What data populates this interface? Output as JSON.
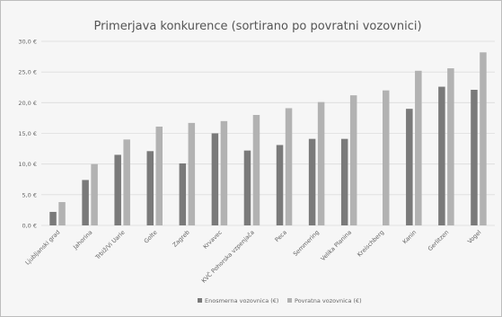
{
  "chart_data": {
    "type": "bar",
    "title": "Primerjava konkurence (sortirano po povratni vozovnici)",
    "xlabel": "",
    "ylabel": "",
    "ylim": [
      0,
      30
    ],
    "yticks": [
      "0,0 €",
      "5,0 €",
      "10,0 €",
      "15,0 €",
      "20,0 €",
      "25,0 €",
      "30,0 €"
    ],
    "grid": true,
    "legend_position": "bottom",
    "categories": [
      "Ljubljanski grad",
      "Jahorina",
      "Trbiž/Vi Uarie",
      "Golte",
      "Zagreb",
      "Krvavec",
      "KVČ Pohorska vzpenjača",
      "Peca",
      "Semmering",
      "Velika Planina",
      "Kreischberg",
      "Kanin",
      "Gerlitzen",
      "Vogel"
    ],
    "series": [
      {
        "name": "Enosmerna vozovnica (€)",
        "color": "#7a7a7a",
        "values": [
          2.2,
          7.4,
          11.5,
          12.1,
          10.1,
          15.0,
          12.2,
          13.1,
          14.1,
          14.1,
          null,
          19.0,
          22.6,
          22.1
        ]
      },
      {
        "name": "Povratna vozovnica (€)",
        "color": "#b2b2b2",
        "values": [
          3.8,
          10.0,
          14.0,
          16.1,
          16.7,
          17.0,
          18.0,
          19.1,
          20.1,
          21.2,
          22.0,
          25.2,
          25.6,
          28.2
        ]
      }
    ]
  }
}
